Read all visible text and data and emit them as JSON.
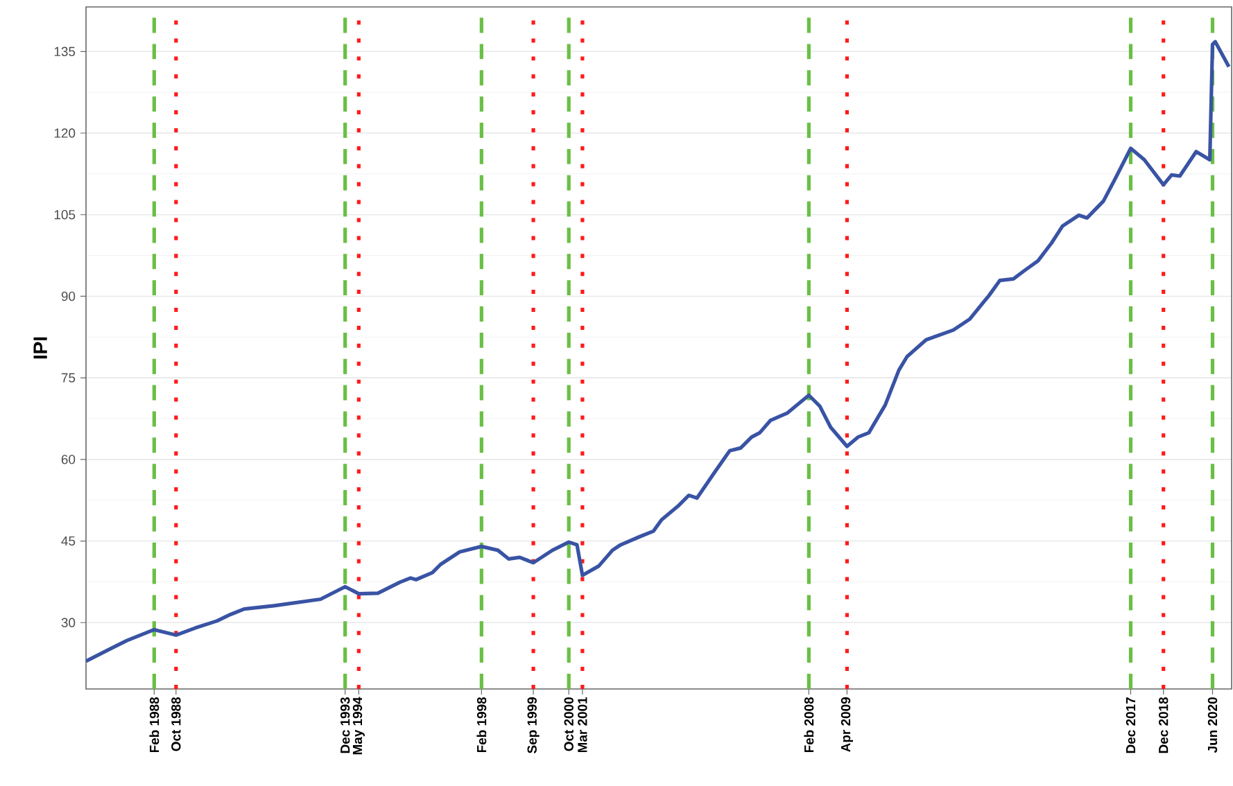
{
  "chart_data": {
    "type": "line",
    "ylabel": "IPI",
    "x": [
      "1986-01",
      "1986-10",
      "1987-04",
      "1988-02",
      "1988-10",
      "1989-05",
      "1990-01",
      "1990-06",
      "1990-11",
      "1991-10",
      "1993-03",
      "1993-12",
      "1994-05",
      "1994-12",
      "1995-08",
      "1995-12",
      "1996-02",
      "1996-08",
      "1996-11",
      "1997-06",
      "1998-02",
      "1998-08",
      "1998-12",
      "1999-04",
      "1999-09",
      "2000-04",
      "2000-10",
      "2001-01",
      "2001-03",
      "2001-09",
      "2002-02",
      "2002-05",
      "2002-12",
      "2003-05",
      "2003-08",
      "2004-02",
      "2004-06",
      "2004-09",
      "2005-03",
      "2005-09",
      "2006-01",
      "2006-05",
      "2006-08",
      "2006-12",
      "2007-06",
      "2008-02",
      "2008-06",
      "2008-10",
      "2009-04",
      "2009-08",
      "2009-12",
      "2010-06",
      "2010-11",
      "2011-02",
      "2011-09",
      "2012-07",
      "2013-01",
      "2013-06",
      "2013-08",
      "2013-12",
      "2014-05",
      "2014-09",
      "2015-02",
      "2015-07",
      "2015-11",
      "2016-05",
      "2016-08",
      "2017-02",
      "2017-06",
      "2017-12",
      "2018-05",
      "2018-12",
      "2019-03",
      "2019-06",
      "2019-12",
      "2020-05",
      "2020-06",
      "2020-07",
      "2020-12"
    ],
    "series": [
      {
        "color": "#3953a4",
        "values": [
          22.9,
          25.2,
          26.7,
          28.7,
          27.7,
          29.0,
          30.3,
          31.5,
          32.5,
          33.1,
          34.3,
          36.6,
          35.3,
          35.4,
          37.4,
          38.2,
          37.9,
          39.2,
          40.7,
          43.0,
          44.0,
          43.3,
          41.7,
          42.0,
          41.0,
          43.3,
          44.8,
          44.3,
          38.7,
          40.4,
          43.3,
          44.3,
          45.8,
          46.8,
          48.9,
          51.4,
          53.4,
          52.9,
          57.3,
          61.6,
          62.1,
          64.1,
          64.9,
          67.2,
          68.5,
          71.8,
          69.8,
          65.9,
          62.4,
          64.1,
          64.9,
          70.0,
          76.4,
          78.9,
          82.0,
          83.8,
          85.8,
          88.9,
          90.1,
          92.9,
          93.2,
          94.7,
          96.5,
          99.8,
          102.9,
          104.9,
          104.4,
          107.5,
          111.3,
          117.2,
          115.1,
          110.5,
          112.3,
          112.1,
          116.6,
          115.1,
          136.3,
          136.8,
          132.2
        ]
      }
    ],
    "xlim": [
      "1986-01",
      "2021-01"
    ],
    "ylim": [
      17.8,
      143.2
    ],
    "yticks": [
      30,
      45,
      60,
      75,
      90,
      105,
      120,
      135
    ],
    "xticks": [
      {
        "value": "1988-02",
        "label": "Feb 1988"
      },
      {
        "value": "1988-10",
        "label": "Oct 1988"
      },
      {
        "value": "1993-12",
        "label": "Dec 1993"
      },
      {
        "value": "1994-05",
        "label": "May 1994"
      },
      {
        "value": "1998-02",
        "label": "Feb 1998"
      },
      {
        "value": "1999-09",
        "label": "Sep 1999"
      },
      {
        "value": "2000-10",
        "label": "Oct 2000"
      },
      {
        "value": "2001-03",
        "label": "Mar 2001"
      },
      {
        "value": "2008-02",
        "label": "Feb 2008"
      },
      {
        "value": "2009-04",
        "label": "Apr 2009"
      },
      {
        "value": "2017-12",
        "label": "Dec 2017"
      },
      {
        "value": "2018-12",
        "label": "Dec 2018"
      },
      {
        "value": "2020-06",
        "label": "Jun 2020"
      }
    ],
    "ref_lines": [
      {
        "axis": "x",
        "value": "1988-02",
        "color": "#6abf45",
        "line_style": "dashed"
      },
      {
        "axis": "x",
        "value": "1988-10",
        "color": "#ff1a1a",
        "line_style": "dotted"
      },
      {
        "axis": "x",
        "value": "1993-12",
        "color": "#6abf45",
        "line_style": "dashed"
      },
      {
        "axis": "x",
        "value": "1994-05",
        "color": "#ff1a1a",
        "line_style": "dotted"
      },
      {
        "axis": "x",
        "value": "1998-02",
        "color": "#6abf45",
        "line_style": "dashed"
      },
      {
        "axis": "x",
        "value": "1999-09",
        "color": "#ff1a1a",
        "line_style": "dotted"
      },
      {
        "axis": "x",
        "value": "2000-10",
        "color": "#6abf45",
        "line_style": "dashed"
      },
      {
        "axis": "x",
        "value": "2001-03",
        "color": "#ff1a1a",
        "line_style": "dotted"
      },
      {
        "axis": "x",
        "value": "2008-02",
        "color": "#6abf45",
        "line_style": "dashed"
      },
      {
        "axis": "x",
        "value": "2009-04",
        "color": "#ff1a1a",
        "line_style": "dotted"
      },
      {
        "axis": "x",
        "value": "2017-12",
        "color": "#6abf45",
        "line_style": "dashed"
      },
      {
        "axis": "x",
        "value": "2018-12",
        "color": "#ff1a1a",
        "line_style": "dotted"
      },
      {
        "axis": "x",
        "value": "2020-06",
        "color": "#6abf45",
        "line_style": "dashed"
      }
    ],
    "grid": "y"
  }
}
